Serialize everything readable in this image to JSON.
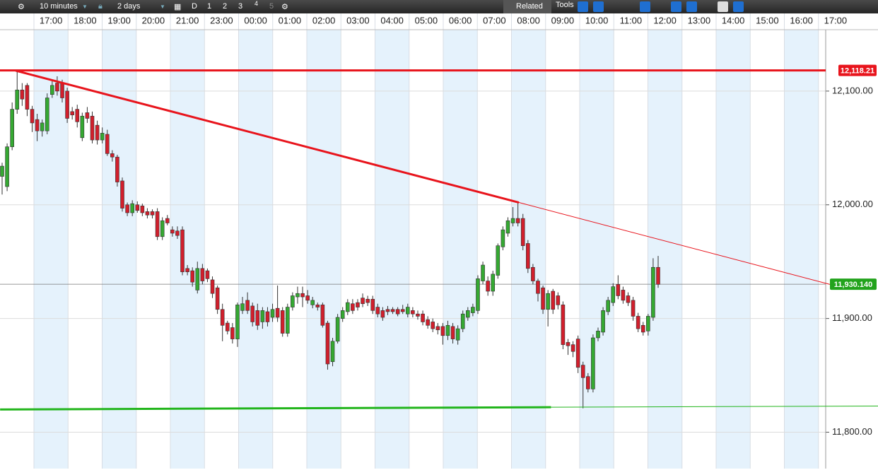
{
  "toolbar": {
    "interval": "10 minutes",
    "range": "2 days",
    "buttons": [
      "D",
      "1",
      "2",
      "3",
      "4",
      "5"
    ],
    "related": "Related",
    "tools": "Tools"
  },
  "chart_data": {
    "type": "candlestick",
    "x_labels": [
      "17:00",
      "18:00",
      "19:00",
      "20:00",
      "21:00",
      "23:00",
      "00:00",
      "01:00",
      "02:00",
      "03:00",
      "04:00",
      "05:00",
      "06:00",
      "07:00",
      "08:00",
      "09:00",
      "10:00",
      "11:00",
      "12:00",
      "13:00",
      "14:00",
      "15:00",
      "16:00",
      "17:00"
    ],
    "open": [
      12025,
      12016,
      12051,
      12084,
      12101,
      12105,
      12084,
      12075,
      12065,
      12065,
      12097,
      12107,
      12107,
      12100,
      12082,
      12084,
      12059,
      12081,
      12078,
      12070,
      12057,
      12062,
      12045,
      12042,
      12021,
      12000,
      11993,
      12000,
      11999,
      11994,
      11994,
      11994,
      11972,
      11988,
      11978,
      11977,
      11978,
      11944,
      11942,
      11925,
      11944,
      11942,
      11934,
      11927,
      11908,
      11896,
      11892,
      11882,
      11907,
      11916,
      11911,
      11907,
      11897,
      11906,
      11901,
      11909,
      11907,
      11887,
      11910,
      11919,
      11922,
      11920,
      11912,
      11912,
      11912,
      11896,
      11862,
      11880,
      11900,
      11906,
      11913,
      11914,
      11918,
      11917,
      11917,
      11910,
      11907,
      11908,
      11908,
      11908,
      11908,
      11904,
      11907,
      11904,
      11904,
      11899,
      11897,
      11893,
      11893,
      11885,
      11893,
      11881,
      11891,
      11901,
      11905,
      11907,
      11933,
      11933,
      11924,
      11938,
      11963,
      11975,
      11984,
      11988,
      11988,
      11966,
      11945,
      11933,
      11927,
      11908,
      11924,
      11920,
      11912,
      11879,
      11877,
      11882,
      11859,
      11849,
      11838,
      11883,
      11888,
      11906,
      11914,
      11930,
      11925,
      11920,
      11916,
      11902,
      11894,
      11889,
      11901,
      11945
    ],
    "high": [
      12037,
      12054,
      12090,
      12118,
      12107,
      12107,
      12087,
      12080,
      12075,
      12098,
      12110,
      12113,
      12110,
      12103,
      12086,
      12088,
      12081,
      12086,
      12082,
      12074,
      12068,
      12066,
      12048,
      12044,
      12024,
      12002,
      12004,
      12003,
      12001,
      11997,
      11996,
      11997,
      11989,
      11991,
      11981,
      11981,
      11981,
      11947,
      11945,
      11950,
      11948,
      11944,
      11937,
      11929,
      11913,
      11898,
      11896,
      11914,
      11919,
      11923,
      11914,
      11913,
      11910,
      11910,
      11913,
      11929,
      11910,
      11913,
      11923,
      11928,
      11928,
      11925,
      11919,
      11914,
      11914,
      11898,
      11883,
      11904,
      11910,
      11917,
      11917,
      11917,
      11922,
      11920,
      11920,
      11913,
      11910,
      11911,
      11910,
      11910,
      11912,
      11913,
      11910,
      11907,
      11907,
      11902,
      11900,
      11896,
      11896,
      11898,
      11896,
      11894,
      11907,
      11910,
      11913,
      11938,
      11950,
      11937,
      11942,
      11966,
      11981,
      11989,
      11998,
      12002,
      11992,
      11969,
      11948,
      11935,
      11929,
      11925,
      11926,
      11923,
      11915,
      11882,
      11880,
      11885,
      11862,
      11852,
      11886,
      11892,
      11910,
      11919,
      11931,
      11938,
      11928,
      11923,
      11919,
      11905,
      11897,
      11904,
      11953,
      11955
    ],
    "low": [
      12009,
      12012,
      12048,
      12080,
      12087,
      12078,
      12064,
      12056,
      12060,
      12062,
      12094,
      12096,
      12090,
      12072,
      12075,
      12068,
      12056,
      12072,
      12054,
      12053,
      12054,
      12043,
      12038,
      12016,
      11994,
      11990,
      11990,
      11993,
      11990,
      11988,
      11988,
      11969,
      11969,
      11982,
      11972,
      11970,
      11938,
      11938,
      11928,
      11922,
      11930,
      11932,
      11918,
      11904,
      11880,
      11886,
      11878,
      11875,
      11904,
      11904,
      11893,
      11890,
      11891,
      11893,
      11897,
      11897,
      11884,
      11884,
      11907,
      11913,
      11910,
      11913,
      11909,
      11907,
      11892,
      11855,
      11858,
      11878,
      11897,
      11903,
      11904,
      11907,
      11910,
      11911,
      11904,
      11901,
      11898,
      11903,
      11904,
      11902,
      11904,
      11901,
      11901,
      11899,
      11894,
      11891,
      11888,
      11886,
      11877,
      11881,
      11878,
      11877,
      11888,
      11898,
      11902,
      11904,
      11930,
      11920,
      11920,
      11935,
      11960,
      11972,
      11981,
      11981,
      11960,
      11940,
      11930,
      11915,
      11904,
      11893,
      11904,
      11908,
      11873,
      11868,
      11866,
      11852,
      11821,
      11835,
      11835,
      11880,
      11885,
      11903,
      11911,
      11917,
      11913,
      11911,
      11898,
      11888,
      11885,
      11885,
      11898,
      11927
    ],
    "close": [
      12034,
      12051,
      12084,
      12101,
      12093,
      12084,
      12072,
      12065,
      12072,
      12094,
      12105,
      12100,
      12094,
      12076,
      12079,
      12073,
      12078,
      12076,
      12057,
      12057,
      12063,
      12045,
      12042,
      12020,
      11997,
      11993,
      12001,
      11995,
      11993,
      11991,
      11991,
      11972,
      11986,
      11984,
      11975,
      11973,
      11941,
      11941,
      11932,
      11944,
      11933,
      11935,
      11922,
      11908,
      11894,
      11889,
      11882,
      11912,
      11913,
      11907,
      11897,
      11894,
      11907,
      11897,
      11908,
      11901,
      11887,
      11910,
      11920,
      11922,
      11919,
      11916,
      11916,
      11910,
      11894,
      11860,
      11880,
      11901,
      11907,
      11914,
      11907,
      11910,
      11913,
      11914,
      11907,
      11904,
      11901,
      11906,
      11906,
      11904,
      11906,
      11910,
      11904,
      11902,
      11897,
      11894,
      11891,
      11890,
      11885,
      11894,
      11882,
      11891,
      11904,
      11907,
      11910,
      11935,
      11947,
      11924,
      11939,
      11964,
      11978,
      11986,
      11988,
      11984,
      11964,
      11944,
      11933,
      11922,
      11908,
      11922,
      11908,
      11912,
      11877,
      11876,
      11871,
      11857,
      11848,
      11838,
      11883,
      11889,
      11907,
      11916,
      11928,
      11920,
      11916,
      11914,
      11902,
      11891,
      11888,
      11902,
      11945,
      11930
    ],
    "up_color": "#35a832",
    "down_color": "#d11f2c",
    "ylim": [
      11768,
      12154
    ],
    "yticks": [
      {
        "value": 11800,
        "label": "11,800.00"
      },
      {
        "value": 11900,
        "label": "11,900.00"
      },
      {
        "value": 12000,
        "label": "12,000.00"
      },
      {
        "value": 12100,
        "label": "12,100.00"
      }
    ],
    "grid": true,
    "hline": {
      "value": 12118.21,
      "label": "12,118.21",
      "color": "#e8141c"
    },
    "last_price": {
      "value": 11930.14,
      "label": "11,930.140",
      "color": "#22a31c"
    },
    "trendlines": [
      {
        "color": "#e8141c",
        "width": 3,
        "points": [
          [
            2.7,
            12118
          ],
          [
            103.2,
            12002
          ]
        ]
      },
      {
        "color": "#e8141c",
        "width": 1,
        "points": [
          [
            103.2,
            12002
          ],
          [
            165.3,
            11930
          ]
        ]
      },
      {
        "color": "#22b51c",
        "width": 3,
        "points": [
          [
            -0.4,
            11820
          ],
          [
            109.6,
            11822
          ]
        ]
      },
      {
        "color": "#22b51c",
        "width": 1,
        "points": [
          [
            109.6,
            11822
          ],
          [
            175.4,
            11823
          ]
        ]
      }
    ]
  }
}
